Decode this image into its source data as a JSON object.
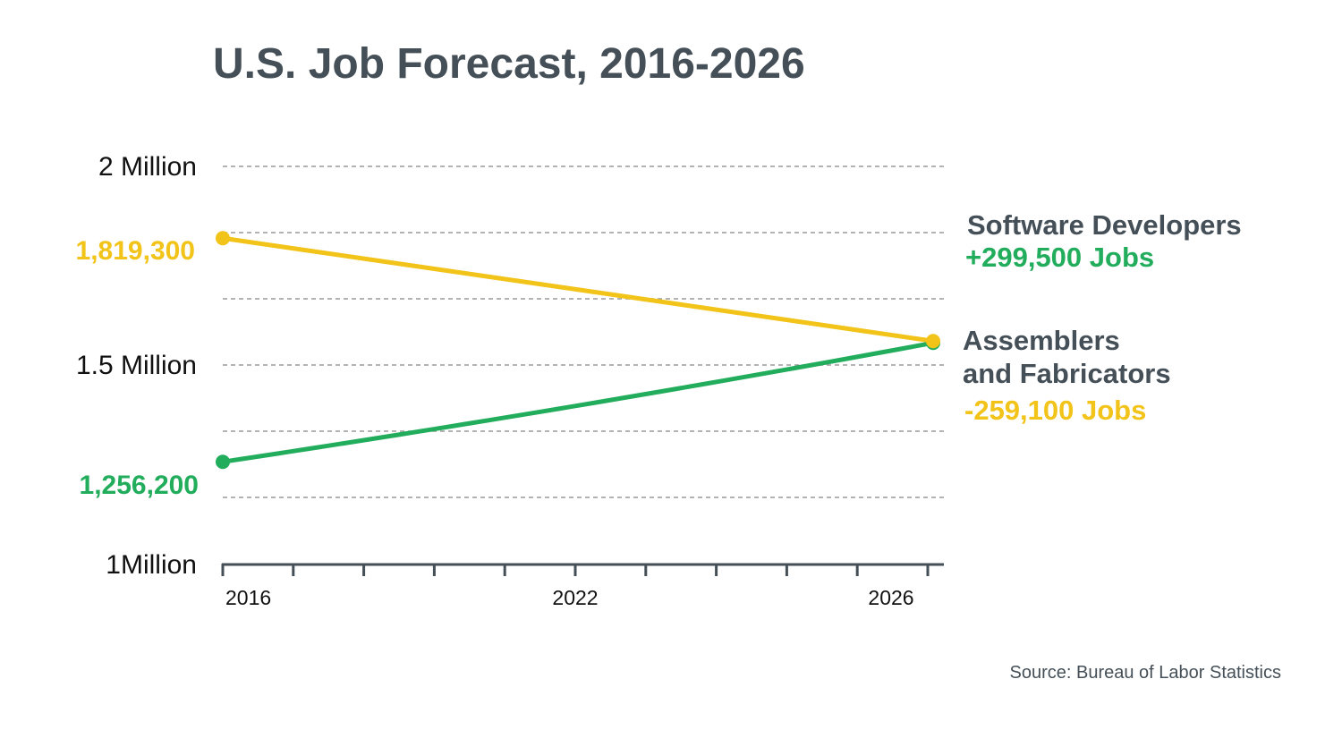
{
  "chart_data": {
    "type": "line",
    "title": "U.S. Job Forecast, 2016-2026",
    "x": [
      2016,
      2026
    ],
    "x_ticks": [
      2016,
      2017,
      2018,
      2019,
      2020,
      2021,
      2022,
      2023,
      2024,
      2025,
      2026
    ],
    "x_tick_labels": [
      "2016",
      "2022",
      "2026"
    ],
    "y_tick_labels": [
      "2 Million",
      "1.5 Million",
      "1Million"
    ],
    "ylim": [
      1000000,
      2000000
    ],
    "grid": "horizontal dashed",
    "series": [
      {
        "name": "Software Developers",
        "start_label": "1,256,200",
        "change_label": "+299,500 Jobs",
        "values": [
          1256200,
          1555700
        ],
        "color": "#22ad5c",
        "curve": "convex"
      },
      {
        "name": "Assemblers and Fabricators",
        "name_lines": [
          "Assemblers",
          "and Fabricators"
        ],
        "start_label": "1,819,300",
        "change_label": "-259,100 Jobs",
        "values": [
          1819300,
          1560200
        ],
        "color": "#f2c318",
        "curve": "straight"
      }
    ],
    "source": "Source: Bureau of Labor Statistics"
  },
  "colors": {
    "text": "#444f57",
    "axis": "#444f57",
    "grid": "#9a9a9a"
  }
}
